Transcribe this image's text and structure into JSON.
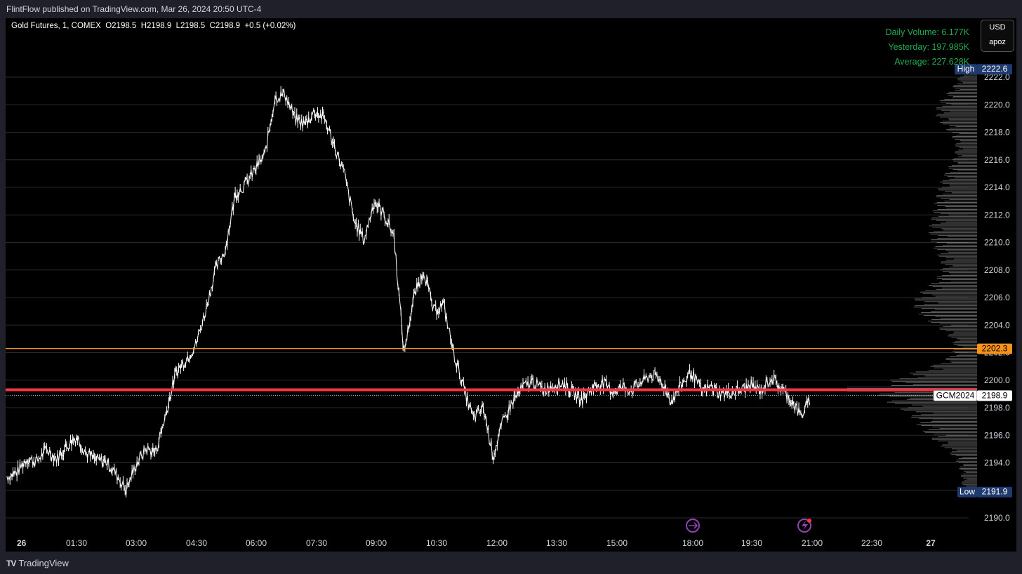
{
  "header": {
    "published_text": "FlintFlow published on TradingView.com, Mar 26, 2024 20:50 UTC-4"
  },
  "legend": {
    "symbol": "Gold Futures, 1, COMEX",
    "open": "O2198.5",
    "high": "H2198.9",
    "low": "L2198.5",
    "close": "C2198.9",
    "change": "+0.5 (+0.02%)"
  },
  "volume_info": {
    "daily": "Daily Volume: 6.177K",
    "yesterday": "Yesterday: 197.985K",
    "average": "Average: 227.628K"
  },
  "scale_controls": {
    "currency": "USD",
    "unit": "apoz"
  },
  "price_labels": {
    "high_tag": "High",
    "high_value": "2222.6",
    "orange_value": "2202.3",
    "symbol_tag": "GCM2024",
    "last_value": "2198.9",
    "low_tag": "Low",
    "low_value": "2191.9"
  },
  "footer": {
    "brand": "TradingView"
  },
  "colors": {
    "background": "#000000",
    "candle": "#ffffff",
    "volume_profile": "#9a9a9a",
    "orange_line": "#f7931a",
    "red_line": "#f23645",
    "volume_text": "#22ab50",
    "high_low_tag": "#1e3a6e",
    "icon_purple": "#8e44ad"
  },
  "icons": {
    "replay": "replay-icon",
    "lightning": "lightning-icon"
  },
  "chart_data": {
    "type": "line",
    "y_ticks": [
      "2190.0",
      "2192.0",
      "2194.0",
      "2196.0",
      "2198.0",
      "2200.0",
      "2202.0",
      "2204.0",
      "2206.0",
      "2208.0",
      "2210.0",
      "2212.0",
      "2214.0",
      "2216.0",
      "2218.0",
      "2220.0",
      "2222.0"
    ],
    "ylim": [
      2189.0,
      2223.6
    ],
    "x_ticks": [
      "26",
      "01:30",
      "03:00",
      "04:30",
      "06:00",
      "07:30",
      "09:00",
      "10:30",
      "12:00",
      "13:30",
      "15:00",
      "18:00",
      "19:30",
      "21:00",
      "22:30",
      "27"
    ],
    "horizontal_lines": [
      {
        "value": 2202.3,
        "color": "#f7931a"
      },
      {
        "value": 2199.3,
        "color": "#f23645"
      },
      {
        "value": 2198.9,
        "style": "dotted"
      }
    ],
    "series": [
      {
        "values": [
          [
            0,
            2193.0
          ],
          [
            0.5,
            2193.3
          ],
          [
            1,
            2194.3
          ],
          [
            1.5,
            2194.1
          ],
          [
            2,
            2195.0
          ],
          [
            2.5,
            2194.3
          ],
          [
            3,
            2195.2
          ],
          [
            3.5,
            2195.9
          ],
          [
            4,
            2194.7
          ],
          [
            4.5,
            2194.2
          ],
          [
            5,
            2194.1
          ],
          [
            5.5,
            2193.2
          ],
          [
            6,
            2192.0
          ],
          [
            6.5,
            2193.9
          ],
          [
            7,
            2195.0
          ],
          [
            7.5,
            2194.8
          ],
          [
            8,
            2197.5
          ],
          [
            8.5,
            2200.5
          ],
          [
            9,
            2201.5
          ],
          [
            9.5,
            2202.5
          ],
          [
            10,
            2205.0
          ],
          [
            10.5,
            2208.0
          ],
          [
            11,
            2209.5
          ],
          [
            11.5,
            2213.5
          ],
          [
            12,
            2214.2
          ],
          [
            12.5,
            2215.3
          ],
          [
            13,
            2216.4
          ],
          [
            13.5,
            2220.5
          ],
          [
            14,
            2220.8
          ],
          [
            14.5,
            2219.0
          ],
          [
            15,
            2218.6
          ],
          [
            15.5,
            2219.5
          ],
          [
            16,
            2219.0
          ],
          [
            16.5,
            2217.0
          ],
          [
            17,
            2215.0
          ],
          [
            17.5,
            2211.5
          ],
          [
            18,
            2210.2
          ],
          [
            18.5,
            2213.0
          ],
          [
            19,
            2212.0
          ],
          [
            19.5,
            2210.5
          ],
          [
            20,
            2202.0
          ],
          [
            20.5,
            2206.0
          ],
          [
            21,
            2208.0
          ],
          [
            21.5,
            2205.0
          ],
          [
            22,
            2205.5
          ],
          [
            22.5,
            2202.0
          ],
          [
            23,
            2199.5
          ],
          [
            23.5,
            2197.2
          ],
          [
            24,
            2198.0
          ],
          [
            24.5,
            2194.5
          ],
          [
            25,
            2197.0
          ],
          [
            25.5,
            2198.5
          ],
          [
            26,
            2199.5
          ],
          [
            26.5,
            2199.9
          ],
          [
            27,
            2199.3
          ],
          [
            27.5,
            2199.6
          ],
          [
            28,
            2199.8
          ],
          [
            28.5,
            2199.1
          ],
          [
            29,
            2198.6
          ],
          [
            29.5,
            2199.5
          ],
          [
            30,
            2199.8
          ],
          [
            30.5,
            2199.2
          ],
          [
            31,
            2199.5
          ],
          [
            31.5,
            2199.3
          ],
          [
            32,
            2199.9
          ],
          [
            32.5,
            2200.4
          ],
          [
            33,
            2199.8
          ],
          [
            33.5,
            2198.5
          ],
          [
            34,
            2199.7
          ],
          [
            34.5,
            2200.6
          ],
          [
            35,
            2199.2
          ],
          [
            35.5,
            2199.5
          ],
          [
            36,
            2199.0
          ],
          [
            36.5,
            2199.1
          ],
          [
            37,
            2199.3
          ],
          [
            37.5,
            2199.6
          ],
          [
            38,
            2199.2
          ],
          [
            38.5,
            2200.2
          ],
          [
            39,
            2199.4
          ],
          [
            39.5,
            2198.6
          ],
          [
            40,
            2197.4
          ],
          [
            40.5,
            2198.6
          ]
        ]
      }
    ],
    "x_range_hours": [
      0,
      46.7
    ]
  }
}
